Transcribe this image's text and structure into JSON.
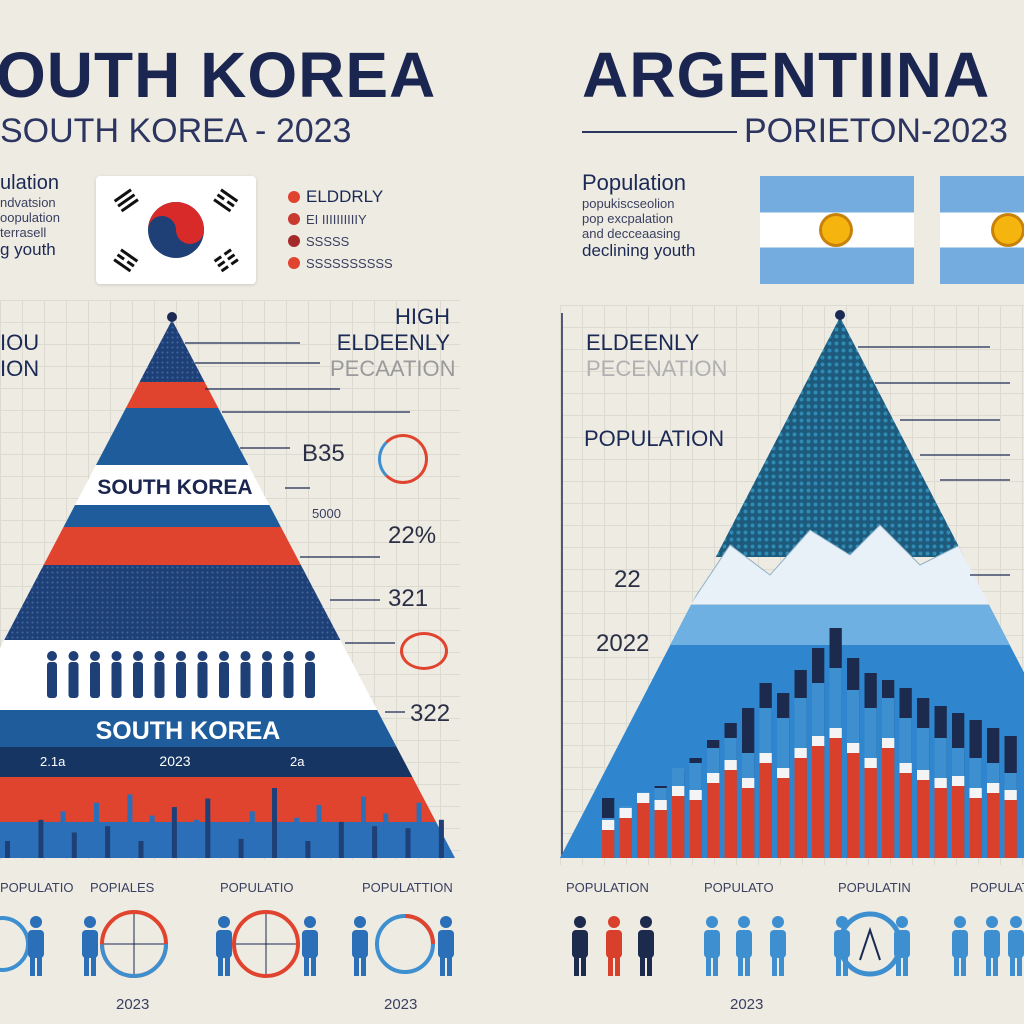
{
  "korea": {
    "title": "OUTH KOREA",
    "subtitle": "SOUTH KOREA - 2023",
    "intro": [
      "ulation",
      "ndvatsion",
      "oopulation",
      "terrasell",
      "g youth"
    ],
    "legend": [
      "ELDDRLY",
      "EI IIIIIIIIIIY",
      "SSSSS",
      "SSSSSSSSSS"
    ],
    "side_left": [
      "IOU",
      "ION"
    ],
    "annot_high": [
      "HIGH",
      "ELDEENLY",
      "PECAATION"
    ],
    "band_label_top": "SOUTH KOREA",
    "band_label_bottom": "SOUTH KOREA",
    "band_year": "2023",
    "band_side_left": "2.1a",
    "band_side_right": "2a",
    "value_labels": [
      "B35",
      "22%",
      "321",
      "322"
    ],
    "small_note": "5000",
    "bottom_labels": [
      "POPULATIO",
      "POPIALES",
      "POPULATIO",
      "POPULATTION"
    ],
    "bottom_years": [
      "2023",
      "2023"
    ],
    "colors": {
      "navy": "#1f3f77",
      "red": "#e0442e",
      "blue": "#3d8fd0",
      "light": "#8fc3e8"
    }
  },
  "argentina": {
    "title": "ARGENTIINA",
    "subtitle": "PORIETON-2023",
    "intro": [
      "Population",
      "popukiscseolion",
      "pop excpalation",
      "and decceaasing",
      "declining youth"
    ],
    "annot": [
      "ELDEENLY",
      "PECENATION",
      "POPULATION"
    ],
    "value_labels": [
      "22",
      "2022"
    ],
    "bottom_labels": [
      "POPULATION",
      "POPULATO",
      "POPULATIN",
      "POPULATIO"
    ],
    "bottom_years": [
      "2023"
    ],
    "colors": {
      "sky": "#74acdf",
      "navy": "#1b2a4d",
      "red": "#d9402b",
      "white": "#f4f4f4"
    }
  },
  "chart_data": [
    {
      "type": "bar",
      "title": "SOUTH KOREA",
      "values": [
        8,
        14,
        6,
        18,
        10,
        22,
        12,
        9,
        26,
        15,
        11,
        30,
        8,
        20,
        13,
        24,
        7,
        18,
        28,
        12,
        16,
        9,
        22,
        14,
        33,
        10,
        19,
        8,
        25,
        13,
        17,
        11,
        29,
        15,
        21,
        9,
        14,
        26,
        12,
        18
      ]
    },
    {
      "type": "bar",
      "title": "ARGENTINA",
      "series": [
        {
          "name": "navy",
          "values": [
            60,
            45,
            58,
            72,
            88,
            100,
            118,
            135,
            150,
            175,
            165,
            188,
            210,
            230,
            200,
            185,
            178,
            170,
            160,
            152,
            145,
            138,
            130,
            122
          ]
        },
        {
          "name": "blue",
          "values": [
            40,
            52,
            66,
            70,
            90,
            95,
            110,
            120,
            105,
            150,
            140,
            160,
            175,
            190,
            168,
            150,
            160,
            140,
            130,
            120,
            110,
            100,
            95,
            85
          ]
        },
        {
          "name": "red",
          "values": [
            28,
            40,
            55,
            48,
            62,
            58,
            75,
            88,
            70,
            95,
            80,
            100,
            112,
            120,
            105,
            90,
            110,
            85,
            78,
            70,
            72,
            60,
            65,
            58
          ]
        }
      ]
    }
  ]
}
